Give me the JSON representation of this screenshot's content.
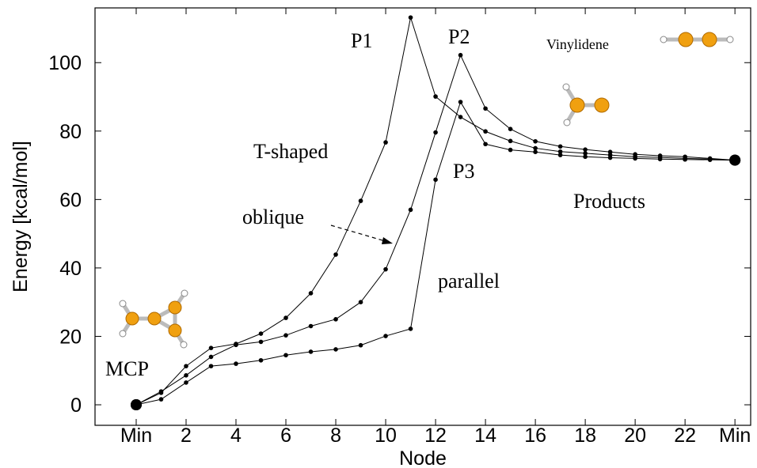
{
  "chart_data": {
    "type": "line",
    "xlabel": "Node",
    "ylabel": "Energy [kcal/mol]",
    "x": [
      0,
      1,
      2,
      3,
      4,
      5,
      6,
      7,
      8,
      9,
      10,
      11,
      12,
      13,
      14,
      15,
      16,
      17,
      18,
      19,
      20,
      21,
      22,
      23,
      24
    ],
    "series": [
      {
        "name": "T-shaped",
        "color": "#000000",
        "values": [
          0,
          3.5,
          11.3,
          16.6,
          17.8,
          20.8,
          25.4,
          32.6,
          43.9,
          59.6,
          76.7,
          113.2,
          90.1,
          84.1,
          79.9,
          77.1,
          75,
          74,
          73.5,
          73,
          72.5,
          72.3,
          72,
          71.8,
          71.5
        ]
      },
      {
        "name": "oblique",
        "color": "#000000",
        "values": [
          0,
          3.9,
          8.6,
          14,
          17.5,
          18.4,
          20.3,
          23,
          25,
          30,
          39.6,
          57,
          79.6,
          102.2,
          86.6,
          80.6,
          77,
          75.5,
          74.6,
          73.9,
          73.2,
          72.8,
          72.5,
          72,
          71.5
        ]
      },
      {
        "name": "parallel",
        "color": "#000000",
        "values": [
          0,
          1.6,
          6.5,
          11.3,
          12,
          13,
          14.5,
          15.5,
          16.2,
          17.4,
          20.1,
          22.2,
          65.8,
          88.5,
          76.2,
          74.5,
          73.9,
          73,
          72.5,
          72.2,
          72,
          71.8,
          71.7,
          71.6,
          71.5
        ]
      }
    ],
    "annotations": [
      "P1",
      "P2",
      "P3",
      "Vinylidene",
      "Products",
      "MCP"
    ],
    "xlim": [
      -1.65,
      24.63
    ],
    "ylim": [
      -6,
      116
    ],
    "xticks": [
      {
        "value": 0,
        "label": "Min"
      },
      2,
      4,
      6,
      8,
      10,
      12,
      14,
      16,
      18,
      20,
      22,
      {
        "value": 24,
        "label": "Min"
      }
    ],
    "yticks": [
      0,
      20,
      40,
      60,
      80,
      100
    ]
  }
}
